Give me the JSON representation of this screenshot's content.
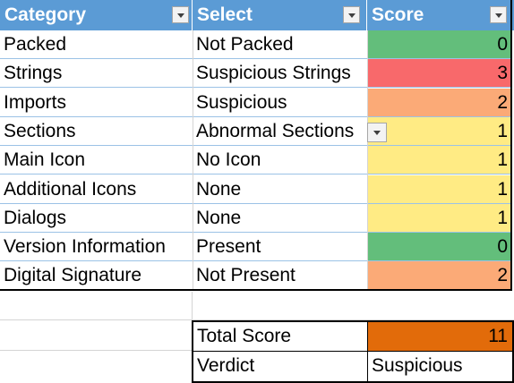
{
  "headers": {
    "category": "Category",
    "select": "Select",
    "score": "Score"
  },
  "rows": [
    {
      "category": "Packed",
      "select": "Not Packed",
      "score": "0",
      "color": "#63be7b"
    },
    {
      "category": "Strings",
      "select": "Suspicious Strings",
      "score": "3",
      "color": "#f8696b"
    },
    {
      "category": "Imports",
      "select": "Suspicious",
      "score": "2",
      "color": "#fbaa77"
    },
    {
      "category": "Sections",
      "select": "Abnormal Sections",
      "score": "1",
      "color": "#ffeb84"
    },
    {
      "category": "Main Icon",
      "select": "No Icon",
      "score": "1",
      "color": "#ffeb84"
    },
    {
      "category": "Additional Icons",
      "select": "None",
      "score": "1",
      "color": "#ffeb84"
    },
    {
      "category": "Dialogs",
      "select": "None",
      "score": "1",
      "color": "#ffeb84"
    },
    {
      "category": "Version Information",
      "select": "Present",
      "score": "0",
      "color": "#63be7b"
    },
    {
      "category": "Digital Signature",
      "select": "Not Present",
      "score": "2",
      "color": "#fbaa77"
    }
  ],
  "summary": {
    "total_label": "Total Score",
    "total_value": "11",
    "total_color": "#e26b0a",
    "verdict_label": "Verdict",
    "verdict_value": "Suspicious"
  },
  "icons": {
    "filter": "filter-dropdown-icon",
    "dropdown": "chevron-down-icon"
  }
}
